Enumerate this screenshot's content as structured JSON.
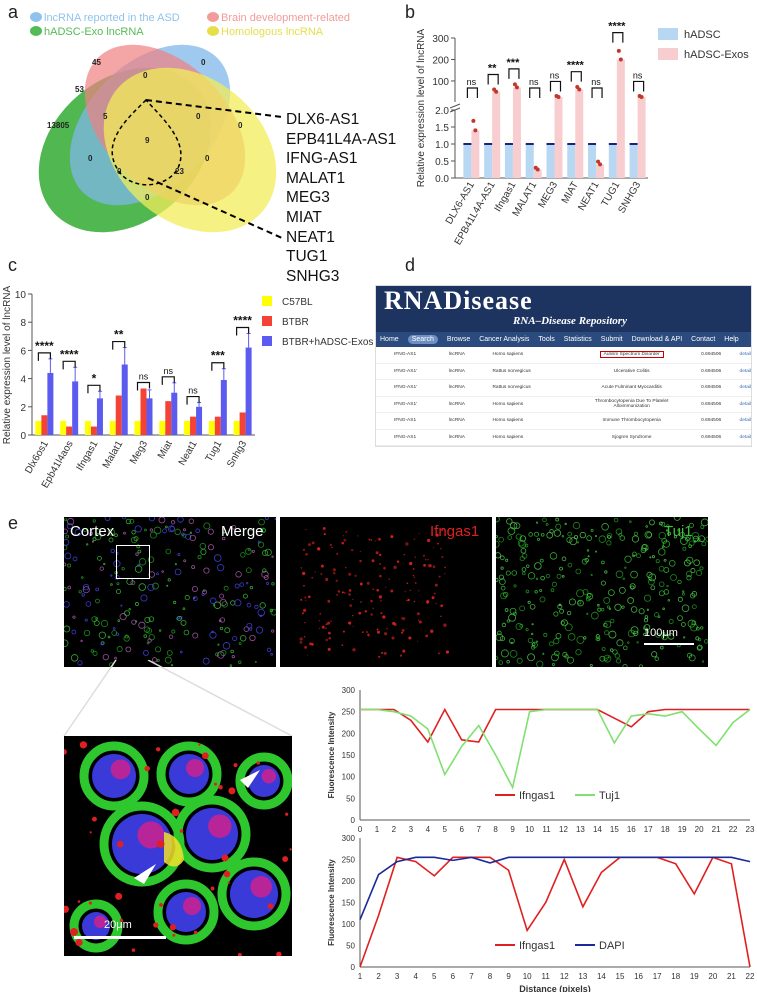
{
  "panel_labels": {
    "a": "a",
    "b": "b",
    "c": "c",
    "d": "d",
    "e": "e"
  },
  "venn": {
    "legend": [
      {
        "label": "lncRNA reported in the ASD",
        "color": "#8fc3ec"
      },
      {
        "label": "Brain development-related",
        "color": "#f29b9b"
      },
      {
        "label": "hADSC-Exo lncRNA",
        "color": "#55bb55"
      },
      {
        "label": "Homologous lncRNA",
        "color": "#f3ee6a"
      }
    ],
    "counts": [
      "45",
      "0",
      "53",
      "0",
      "13805",
      "5",
      "0",
      "0",
      "9",
      "0",
      "0",
      "0",
      "23",
      "0"
    ],
    "genes": [
      "DLX6-AS1",
      "EPB41L4A-AS1",
      "IFNG-AS1",
      "MALAT1",
      "MEG3",
      "MIAT",
      "NEAT1",
      "TUG1",
      "SNHG3"
    ]
  },
  "chart_b": {
    "type": "bar",
    "ylabel": "Relative  expression level of lncRNA",
    "categories": [
      "DLX6-AS1",
      "EPB41L4A-AS1",
      "Ifngas1",
      "MALAT1",
      "MEG3",
      "MIAT",
      "NEAT1",
      "TUG1",
      "SNHG3"
    ],
    "series": [
      {
        "name": "hADSC",
        "color": "#b7d7f2",
        "values": [
          1,
          1,
          1,
          1,
          1,
          1,
          1,
          1,
          1
        ]
      },
      {
        "name": "hADSC-Exos",
        "color": "#f8cdd0",
        "values": [
          1.4,
          50,
          70,
          0.25,
          25,
          60,
          0.4,
          200,
          25
        ]
      }
    ],
    "sig": [
      "ns",
      "**",
      "***",
      "ns",
      "ns",
      "****",
      "ns",
      "****",
      "ns"
    ],
    "lower_ticks": [
      "0.0",
      "0.5",
      "1.0",
      "1.5",
      "2.0"
    ],
    "upper_ticks": [
      "100",
      "200",
      "300"
    ]
  },
  "chart_c": {
    "type": "bar",
    "ylabel": "Relative  expression level of lncRNA",
    "ylim": [
      0,
      10
    ],
    "yticks": [
      "0",
      "2",
      "4",
      "6",
      "8",
      "10"
    ],
    "categories": [
      "Dlx6os1",
      "Epb41l4aos",
      "Ifngas1",
      "Malat1",
      "Meg3",
      "Miat",
      "Neat1",
      "Tug1",
      "Snhg3"
    ],
    "series": [
      {
        "name": "C57BL",
        "color": "#ffff00",
        "values": [
          1,
          1,
          1,
          1,
          1,
          1,
          1,
          1,
          1
        ]
      },
      {
        "name": "BTBR",
        "color": "#f44336",
        "values": [
          1.4,
          0.6,
          0.6,
          2.8,
          3.3,
          2.4,
          1.3,
          1.3,
          1.6
        ]
      },
      {
        "name": "BTBR+hADSC-Exos",
        "color": "#5b5bf0",
        "values": [
          4.4,
          3.8,
          2.6,
          5.0,
          2.6,
          3.0,
          2.0,
          3.9,
          6.2
        ]
      }
    ],
    "errors": [
      1.0,
      1.0,
      0.5,
      1.2,
      0.6,
      0.7,
      0.3,
      0.8,
      1.0
    ],
    "sig": [
      "****",
      "****",
      "*",
      "**",
      "ns",
      "ns",
      "ns",
      "***",
      "****"
    ]
  },
  "rnadisease": {
    "logo": "RNADisease",
    "subtitle": "RNA–Disease Repository",
    "nav": [
      "Home",
      "Search",
      "Browse",
      "Cancer Analysis",
      "Tools",
      "Statistics",
      "Submit",
      "Download & API",
      "Contact",
      "Help"
    ],
    "rows": [
      {
        "rna": "IFNG-AS1",
        "type": "lncRNA",
        "species": "Homo sapiens",
        "disease": "Autism Spectrum Disorder",
        "score": "0.694506",
        "link": "detail"
      },
      {
        "rna": "IFNG-AS1′",
        "type": "lncRNA",
        "species": "Rattus norvegicus",
        "disease": "Ulcerative Colitis",
        "score": "0.694506",
        "link": "detail"
      },
      {
        "rna": "IFNG-AS1′",
        "type": "lncRNA",
        "species": "Rattus norvegicus",
        "disease": "Acute Fulminant Myocarditis",
        "score": "0.694506",
        "link": "detail"
      },
      {
        "rna": "IFNG-AS1′",
        "type": "lncRNA",
        "species": "Homo sapiens",
        "disease": "Thrombocytopenia Due To Platelet Alloimmunization",
        "score": "0.694506",
        "link": "detail"
      },
      {
        "rna": "IFNG-AS1",
        "type": "lncRNA",
        "species": "Homo sapiens",
        "disease": "Immune Thrombocytopenia",
        "score": "0.694506",
        "link": "detail"
      },
      {
        "rna": "IFNG-AS1",
        "type": "lncRNA",
        "species": "Homo sapiens",
        "disease": "Sjogren Syndrome",
        "score": "0.694506",
        "link": "detail"
      }
    ]
  },
  "micrographs": {
    "cortex": "Cortex",
    "merge": "Merge",
    "ifngas1": "Ifngas1",
    "tuj1": "Tuj1",
    "scale_top": "100μm",
    "scale_bottom": "20μm"
  },
  "chart_e1": {
    "type": "line",
    "ylabel": "Fluorescence Intensity",
    "ylim": [
      0,
      300
    ],
    "yticks": [
      "0",
      "50",
      "100",
      "150",
      "200",
      "250",
      "300"
    ],
    "x": [
      0,
      1,
      2,
      3,
      4,
      5,
      6,
      7,
      8,
      9,
      10,
      11,
      12,
      13,
      14,
      15,
      16,
      17,
      18,
      19,
      20,
      21,
      22,
      23
    ],
    "series": [
      {
        "name": "Ifngas1",
        "color": "#e02020",
        "values": [
          255,
          255,
          255,
          230,
          180,
          255,
          185,
          180,
          255,
          255,
          255,
          255,
          255,
          255,
          255,
          235,
          215,
          250,
          255,
          255,
          255,
          255,
          255,
          255
        ]
      },
      {
        "name": "Tuj1",
        "color": "#80e070",
        "values": [
          255,
          255,
          250,
          240,
          210,
          105,
          170,
          218,
          150,
          75,
          250,
          255,
          255,
          255,
          255,
          178,
          240,
          245,
          240,
          250,
          210,
          172,
          225,
          255
        ]
      }
    ]
  },
  "chart_e2": {
    "type": "line",
    "ylabel": "Fluorescence Intensity",
    "xlabel": "Distance (pixels)",
    "ylim": [
      0,
      300
    ],
    "yticks": [
      "0",
      "50",
      "100",
      "150",
      "200",
      "250",
      "300"
    ],
    "x": [
      1,
      2,
      3,
      4,
      5,
      6,
      7,
      8,
      9,
      10,
      11,
      12,
      13,
      14,
      15,
      16,
      17,
      18,
      19,
      20,
      21,
      22
    ],
    "series": [
      {
        "name": "Ifngas1",
        "color": "#e02020",
        "values": [
          0,
          120,
          255,
          245,
          212,
          255,
          255,
          255,
          225,
          85,
          150,
          250,
          140,
          220,
          255,
          255,
          255,
          240,
          170,
          255,
          240,
          0
        ]
      },
      {
        "name": "DAPI",
        "color": "#1a2a9a",
        "values": [
          110,
          215,
          245,
          255,
          255,
          248,
          255,
          242,
          255,
          255,
          255,
          255,
          255,
          255,
          255,
          255,
          255,
          255,
          255,
          255,
          255,
          245
        ]
      }
    ]
  }
}
